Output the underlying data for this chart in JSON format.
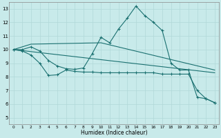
{
  "background_color": "#c8eaea",
  "grid_color": "#b0d8d8",
  "line_color": "#1a7070",
  "xlabel": "Humidex (Indice chaleur)",
  "ylim": [
    4.5,
    13.5
  ],
  "xlim": [
    -0.5,
    23.5
  ],
  "yticks": [
    5,
    6,
    7,
    8,
    9,
    10,
    11,
    12,
    13
  ],
  "xticks": [
    0,
    1,
    2,
    3,
    4,
    5,
    6,
    7,
    8,
    9,
    10,
    11,
    12,
    13,
    14,
    15,
    16,
    17,
    18,
    19,
    20,
    21,
    22,
    23
  ],
  "line1_x": [
    0,
    1,
    2,
    3,
    4,
    5,
    6,
    7,
    8,
    9,
    10,
    11,
    12,
    13,
    14,
    15,
    16,
    17,
    18,
    19,
    20,
    21,
    22,
    23
  ],
  "line1_y": [
    10.0,
    10.0,
    10.2,
    9.9,
    9.2,
    8.8,
    8.6,
    8.55,
    8.65,
    9.7,
    10.9,
    10.5,
    11.5,
    12.3,
    13.2,
    12.5,
    12.0,
    11.4,
    9.0,
    8.5,
    8.5,
    6.5,
    6.4,
    6.1
  ],
  "line2_x": [
    0,
    2,
    10,
    23
  ],
  "line2_y": [
    10.0,
    10.4,
    10.5,
    8.5
  ],
  "line3_x": [
    0,
    23
  ],
  "line3_y": [
    10.0,
    8.3
  ],
  "line4_x": [
    0,
    1,
    2,
    3,
    4,
    5,
    6,
    7,
    8,
    9,
    10,
    11,
    12,
    13,
    14,
    15,
    16,
    17,
    18,
    19,
    20,
    21,
    22,
    23
  ],
  "line4_y": [
    10.0,
    9.9,
    9.6,
    9.0,
    8.1,
    8.15,
    8.5,
    8.4,
    8.35,
    8.35,
    8.3,
    8.3,
    8.3,
    8.3,
    8.3,
    8.3,
    8.3,
    8.2,
    8.2,
    8.2,
    8.2,
    7.0,
    6.4,
    6.1
  ]
}
